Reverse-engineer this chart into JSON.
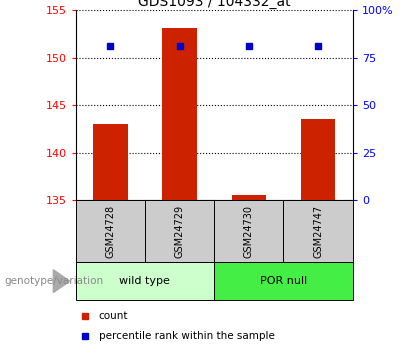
{
  "title": "GDS1093 / 104332_at",
  "samples": [
    "GSM24728",
    "GSM24729",
    "GSM24730",
    "GSM24747"
  ],
  "count_values": [
    143.0,
    153.1,
    135.5,
    143.5
  ],
  "percentile_values": [
    151.2,
    151.2,
    151.2,
    151.2
  ],
  "ylim_left": [
    135,
    155
  ],
  "ylim_right": [
    0,
    100
  ],
  "yticks_left": [
    135,
    140,
    145,
    150,
    155
  ],
  "yticks_right": [
    0,
    25,
    50,
    75,
    100
  ],
  "ytick_labels_right": [
    "0",
    "25",
    "50",
    "75",
    "100%"
  ],
  "bar_color": "#cc2200",
  "square_color": "#0000cc",
  "groups": [
    {
      "label": "wild type",
      "indices": [
        0,
        1
      ],
      "color": "#ccffcc"
    },
    {
      "label": "POR null",
      "indices": [
        2,
        3
      ],
      "color": "#44ee44"
    }
  ],
  "group_label_prefix": "genotype/variation",
  "legend_items": [
    {
      "label": "count",
      "color": "#cc2200"
    },
    {
      "label": "percentile rank within the sample",
      "color": "#0000cc"
    }
  ],
  "sample_box_color": "#cccccc",
  "bar_width": 0.5
}
